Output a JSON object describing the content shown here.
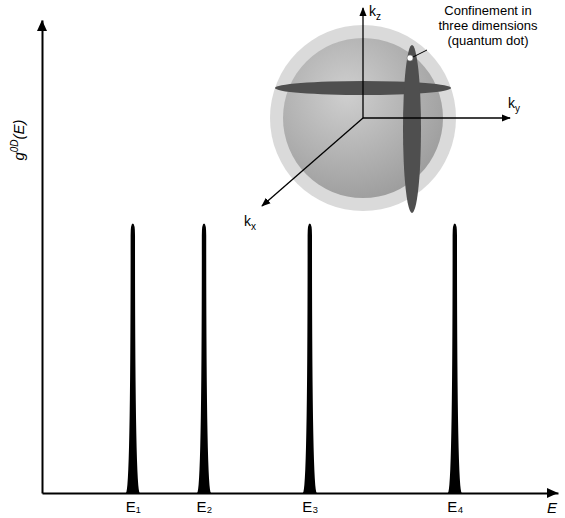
{
  "chart_data": {
    "type": "spike",
    "x": [
      17.6,
      31.4,
      51.9,
      80.0
    ],
    "values": [
      57,
      57,
      57,
      57
    ],
    "color": "#000000",
    "xlim": [
      0,
      100
    ],
    "ylim": [
      0,
      100
    ],
    "xticks": [
      {
        "value": 17.6,
        "label": "E₁"
      },
      {
        "value": 31.4,
        "label": "E₂"
      },
      {
        "value": 51.9,
        "label": "E₃"
      },
      {
        "value": 80.0,
        "label": "E₄"
      }
    ],
    "yticks": [],
    "tick_labels": "x",
    "grid": false,
    "xlabel": "E",
    "ylabel": {
      "text": "g",
      "sup": "0D",
      "after": "(E)"
    },
    "inset": {
      "annotation": "Confinement in three dimensions (quantum dot)",
      "axis_labels": [
        {
          "text": "k",
          "sub": "x"
        },
        {
          "text": "k",
          "sub": "y"
        },
        {
          "text": "k",
          "sub": "z"
        }
      ]
    }
  }
}
